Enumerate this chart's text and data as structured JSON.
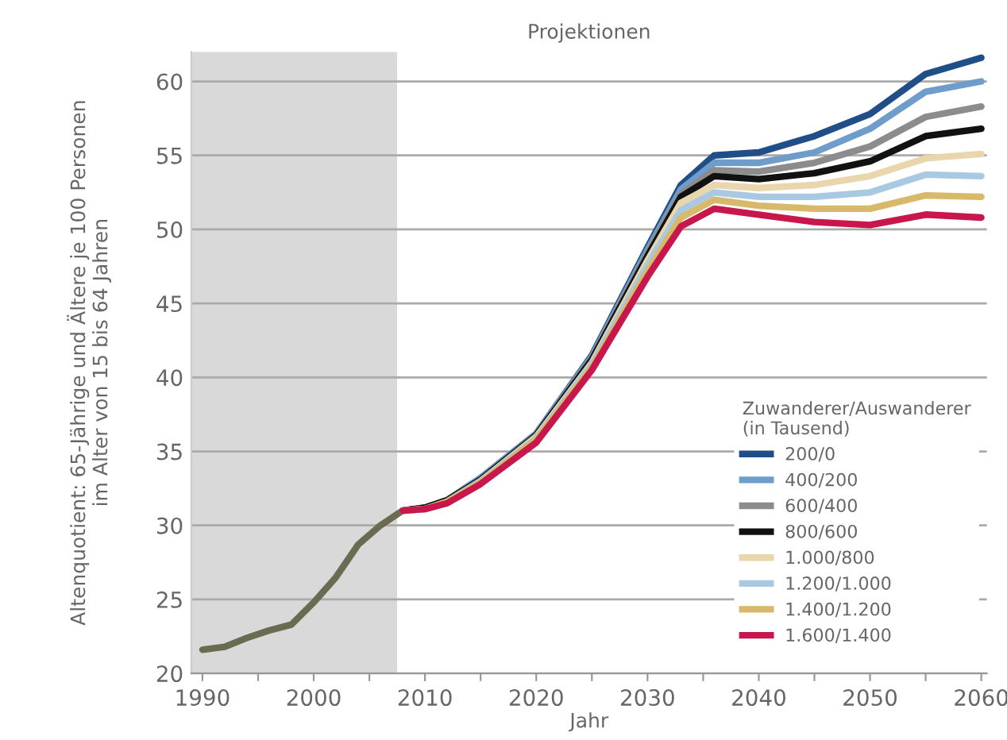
{
  "chart_data": {
    "type": "line",
    "title": "Projektionen",
    "xlabel": "Jahr",
    "ylabel": "Altenquotient: 65-Jährige und Ältere je 100 Personen\nim Alter von 15 bis 64 Jahren",
    "legend_title": "Zuwanderer/Auswanderer\n(in Tausend)",
    "xlim": [
      1989,
      2060.5
    ],
    "ylim": [
      20,
      62
    ],
    "xticks": [
      1990,
      {
        "value": 1995,
        "label": null
      },
      2000,
      {
        "value": 2005,
        "label": null
      },
      2010,
      {
        "value": 2015,
        "label": null
      },
      2020,
      {
        "value": 2025,
        "label": null
      },
      2030,
      {
        "value": 2035,
        "label": null
      },
      2040,
      {
        "value": 2045,
        "label": null
      },
      2050,
      {
        "value": 2055,
        "label": null
      },
      2060
    ],
    "yticks": [
      20,
      25,
      30,
      35,
      40,
      45,
      50,
      55,
      60
    ],
    "grid": "y",
    "legend": "bottom right",
    "bands": [
      {
        "axis": "x",
        "from": 1989,
        "to": 2007.5,
        "color": "#d9d9d9"
      }
    ],
    "series": [
      {
        "color": "#6b6b52",
        "x": [
          1990,
          1992,
          1994,
          1996,
          1998,
          2000,
          2002,
          2004,
          2006,
          2008
        ],
        "values": [
          21.6,
          21.8,
          22.4,
          22.9,
          23.3,
          24.8,
          26.5,
          28.7,
          30.0,
          31.0
        ]
      },
      {
        "name": "200/0",
        "color": "#1f4e89",
        "x": [
          2008,
          2010,
          2012,
          2015,
          2020,
          2025,
          2030,
          2033,
          2036,
          2040,
          2045,
          2050,
          2055,
          2060
        ],
        "values": [
          31.0,
          31.2,
          31.7,
          33.2,
          36.2,
          41.5,
          48.8,
          53.0,
          55.0,
          55.2,
          56.3,
          57.8,
          60.5,
          61.6
        ]
      },
      {
        "name": "400/200",
        "color": "#6e9ccb",
        "x": [
          2008,
          2010,
          2012,
          2015,
          2020,
          2025,
          2030,
          2033,
          2036,
          2040,
          2045,
          2050,
          2055,
          2060
        ],
        "values": [
          31.0,
          31.2,
          31.7,
          33.2,
          36.2,
          41.4,
          48.6,
          52.7,
          54.5,
          54.5,
          55.2,
          56.8,
          59.3,
          60.0
        ]
      },
      {
        "name": "600/400",
        "color": "#8c8c8c",
        "x": [
          2008,
          2010,
          2012,
          2015,
          2020,
          2025,
          2030,
          2033,
          2036,
          2040,
          2045,
          2050,
          2055,
          2060
        ],
        "values": [
          31.0,
          31.2,
          31.7,
          33.1,
          36.1,
          41.3,
          48.4,
          52.4,
          54.0,
          53.9,
          54.5,
          55.6,
          57.6,
          58.3
        ]
      },
      {
        "name": "800/600",
        "color": "#111111",
        "x": [
          2008,
          2010,
          2012,
          2015,
          2020,
          2025,
          2030,
          2033,
          2036,
          2040,
          2045,
          2050,
          2055,
          2060
        ],
        "values": [
          31.0,
          31.2,
          31.7,
          33.1,
          36.1,
          41.2,
          48.2,
          52.2,
          53.6,
          53.4,
          53.8,
          54.6,
          56.3,
          56.8
        ]
      },
      {
        "name": "1.000/800",
        "color": "#ead6ad",
        "x": [
          2008,
          2010,
          2012,
          2015,
          2020,
          2025,
          2030,
          2033,
          2036,
          2040,
          2045,
          2050,
          2055,
          2060
        ],
        "values": [
          31.0,
          31.1,
          31.6,
          33.0,
          36.0,
          41.0,
          47.9,
          51.8,
          53.0,
          52.8,
          53.0,
          53.6,
          54.8,
          55.1
        ]
      },
      {
        "name": "1.200/1.000",
        "color": "#a9c9e2",
        "x": [
          2008,
          2010,
          2012,
          2015,
          2020,
          2025,
          2030,
          2033,
          2036,
          2040,
          2045,
          2050,
          2055,
          2060
        ],
        "values": [
          31.0,
          31.1,
          31.6,
          33.0,
          35.9,
          40.9,
          47.6,
          51.3,
          52.5,
          52.2,
          52.2,
          52.5,
          53.7,
          53.6
        ]
      },
      {
        "name": "1.400/1.200",
        "color": "#d8b96a",
        "x": [
          2008,
          2010,
          2012,
          2015,
          2020,
          2025,
          2030,
          2033,
          2036,
          2040,
          2045,
          2050,
          2055,
          2060
        ],
        "values": [
          31.0,
          31.1,
          31.6,
          32.9,
          35.8,
          40.7,
          47.2,
          50.8,
          52.0,
          51.6,
          51.4,
          51.4,
          52.3,
          52.2
        ]
      },
      {
        "name": "1.600/1.400",
        "color": "#c8174c",
        "x": [
          2008,
          2010,
          2012,
          2015,
          2020,
          2025,
          2030,
          2033,
          2036,
          2040,
          2045,
          2050,
          2055,
          2060
        ],
        "values": [
          31.0,
          31.1,
          31.5,
          32.8,
          35.6,
          40.5,
          46.8,
          50.2,
          51.4,
          51.0,
          50.5,
          50.3,
          51.0,
          50.8
        ]
      }
    ]
  }
}
